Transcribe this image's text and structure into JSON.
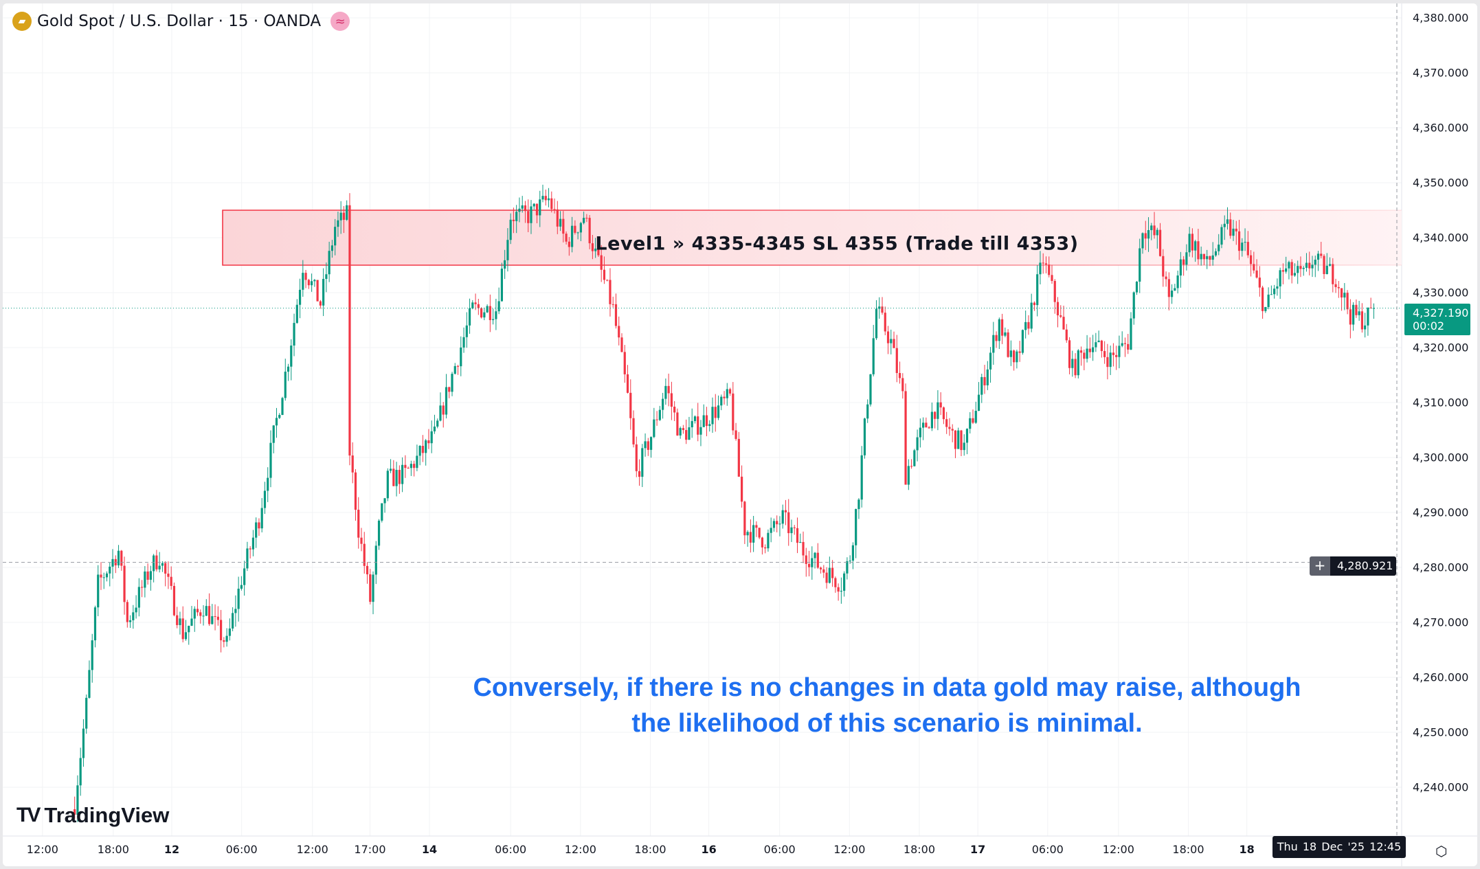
{
  "header": {
    "symbol_title": "Gold Spot / U.S. Dollar · 15 · OANDA",
    "symbol_icon": "gold-bars-icon",
    "status_icon": "approx-icon"
  },
  "colors": {
    "up": "#089981",
    "down": "#f23645",
    "zone_fill": "#fde3e5",
    "zone_border": "#f23645",
    "note": "#1e6ff0"
  },
  "price_axis": {
    "labels": [
      "4,380.000",
      "4,370.000",
      "4,360.000",
      "4,350.000",
      "4,340.000",
      "4,330.000",
      "4,320.000",
      "4,310.000",
      "4,300.000",
      "4,290.000",
      "4,280.000",
      "4,270.000",
      "4,260.000",
      "4,250.000",
      "4,240.000"
    ],
    "current_price": "4,327.190",
    "countdown": "00:02",
    "crosshair_price": "4,280.921"
  },
  "time_axis": {
    "labels": [
      "12:00",
      "18:00",
      "12",
      "06:00",
      "12:00",
      "17:00",
      "14",
      "06:00",
      "12:00",
      "18:00",
      "16",
      "06:00",
      "12:00",
      "18:00",
      "17",
      "06:00",
      "12:00",
      "18:00",
      "18"
    ],
    "bold": [
      false,
      false,
      true,
      false,
      false,
      false,
      true,
      false,
      false,
      false,
      true,
      false,
      false,
      false,
      true,
      false,
      false,
      false,
      true
    ],
    "crosshair_time": "Thu 18 Dec '25   12:45"
  },
  "zone": {
    "label": "Level1 » 4335-4345 SL 4355 (Trade till 4353)",
    "low": 4335,
    "high": 4345
  },
  "note": {
    "line1": "Conversely, if there is no changes in data gold may raise, although",
    "line2": "the likelihood of this scenario is minimal."
  },
  "logo": {
    "text": "TradingView"
  },
  "chart_data": {
    "type": "candlestick",
    "title": "Gold Spot / U.S. Dollar · 15 · OANDA",
    "ylim": [
      4230,
      4382
    ],
    "current_price": 4327.19,
    "crosshair_price": 4280.921,
    "path_note": "approximate close path as [bar_index (15-min bars from first 12:00 label), price]",
    "path": [
      [
        11,
        4237
      ],
      [
        15,
        4255
      ],
      [
        19,
        4277
      ],
      [
        26,
        4283
      ],
      [
        29,
        4270
      ],
      [
        37,
        4280
      ],
      [
        40,
        4282
      ],
      [
        48,
        4268
      ],
      [
        55,
        4273
      ],
      [
        63,
        4266
      ],
      [
        68,
        4278
      ],
      [
        74,
        4289
      ],
      [
        79,
        4304
      ],
      [
        84,
        4318
      ],
      [
        89,
        4335
      ],
      [
        95,
        4328
      ],
      [
        100,
        4342
      ],
      [
        104,
        4344
      ],
      [
        105,
        4301
      ],
      [
        108,
        4287
      ],
      [
        112,
        4274
      ],
      [
        115,
        4287
      ],
      [
        118,
        4296
      ],
      [
        124,
        4297
      ],
      [
        134,
        4304
      ],
      [
        140,
        4315
      ],
      [
        147,
        4327
      ],
      [
        155,
        4327
      ],
      [
        160,
        4344
      ],
      [
        166,
        4344
      ],
      [
        173,
        4347
      ],
      [
        179,
        4339
      ],
      [
        185,
        4344
      ],
      [
        189,
        4337
      ],
      [
        195,
        4327
      ],
      [
        200,
        4311
      ],
      [
        203,
        4297
      ],
      [
        208,
        4304
      ],
      [
        213,
        4313
      ],
      [
        218,
        4304
      ],
      [
        224,
        4306
      ],
      [
        231,
        4309
      ],
      [
        235,
        4311
      ],
      [
        240,
        4287
      ],
      [
        247,
        4285
      ],
      [
        253,
        4289
      ],
      [
        260,
        4283
      ],
      [
        266,
        4280
      ],
      [
        273,
        4277
      ],
      [
        276,
        4282
      ],
      [
        279,
        4294
      ],
      [
        282,
        4311
      ],
      [
        285,
        4327
      ],
      [
        290,
        4321
      ],
      [
        294,
        4311
      ],
      [
        295,
        4297
      ],
      [
        300,
        4304
      ],
      [
        305,
        4309
      ],
      [
        311,
        4304
      ],
      [
        315,
        4302
      ],
      [
        321,
        4313
      ],
      [
        327,
        4325
      ],
      [
        332,
        4316
      ],
      [
        337,
        4325
      ],
      [
        342,
        4336
      ],
      [
        347,
        4327
      ],
      [
        352,
        4316
      ],
      [
        358,
        4321
      ],
      [
        365,
        4318
      ],
      [
        371,
        4321
      ],
      [
        376,
        4342
      ],
      [
        381,
        4340
      ],
      [
        385,
        4328
      ],
      [
        392,
        4340
      ],
      [
        398,
        4335
      ],
      [
        405,
        4342
      ],
      [
        411,
        4338
      ],
      [
        418,
        4327
      ],
      [
        424,
        4334
      ],
      [
        431,
        4333
      ],
      [
        434,
        4336
      ],
      [
        442,
        4333
      ],
      [
        447,
        4326
      ],
      [
        452,
        4325
      ],
      [
        455,
        4327.19
      ]
    ]
  }
}
